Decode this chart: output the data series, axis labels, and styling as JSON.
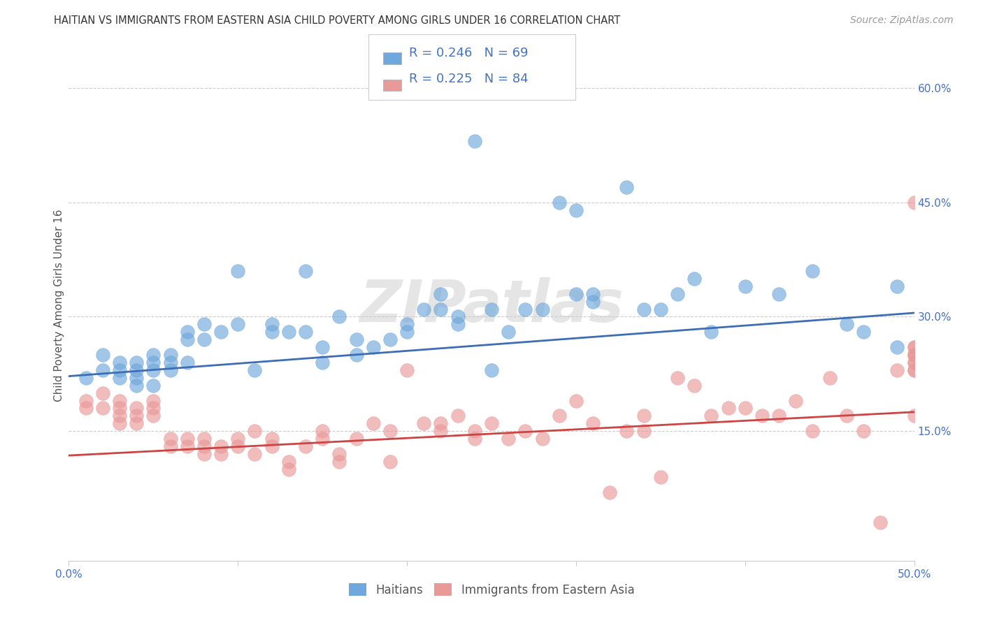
{
  "title": "HAITIAN VS IMMIGRANTS FROM EASTERN ASIA CHILD POVERTY AMONG GIRLS UNDER 16 CORRELATION CHART",
  "source": "Source: ZipAtlas.com",
  "ylabel": "Child Poverty Among Girls Under 16",
  "xlim": [
    0.0,
    0.5
  ],
  "ylim": [
    -0.02,
    0.65
  ],
  "yticks_right": [
    0.15,
    0.3,
    0.45,
    0.6
  ],
  "ytick_labels_right": [
    "15.0%",
    "30.0%",
    "45.0%",
    "60.0%"
  ],
  "blue_color": "#6fa8dc",
  "pink_color": "#ea9999",
  "blue_line_color": "#3d6eb5",
  "pink_line_color": "#cc4444",
  "legend_R1": "R = 0.246",
  "legend_N1": "N = 69",
  "legend_R2": "R = 0.225",
  "legend_N2": "N = 84",
  "watermark": "ZIPatlas",
  "blue_scatter_x": [
    0.01,
    0.02,
    0.02,
    0.03,
    0.03,
    0.03,
    0.04,
    0.04,
    0.04,
    0.04,
    0.05,
    0.05,
    0.05,
    0.05,
    0.06,
    0.06,
    0.06,
    0.07,
    0.07,
    0.07,
    0.08,
    0.08,
    0.09,
    0.1,
    0.1,
    0.11,
    0.12,
    0.12,
    0.13,
    0.14,
    0.14,
    0.15,
    0.15,
    0.16,
    0.17,
    0.17,
    0.18,
    0.19,
    0.2,
    0.2,
    0.21,
    0.22,
    0.22,
    0.23,
    0.23,
    0.24,
    0.25,
    0.25,
    0.26,
    0.27,
    0.28,
    0.29,
    0.3,
    0.3,
    0.31,
    0.31,
    0.33,
    0.34,
    0.35,
    0.36,
    0.37,
    0.38,
    0.4,
    0.42,
    0.44,
    0.46,
    0.47,
    0.49,
    0.49
  ],
  "blue_scatter_y": [
    0.22,
    0.25,
    0.23,
    0.24,
    0.23,
    0.22,
    0.24,
    0.23,
    0.22,
    0.21,
    0.25,
    0.24,
    0.23,
    0.21,
    0.25,
    0.24,
    0.23,
    0.28,
    0.27,
    0.24,
    0.29,
    0.27,
    0.28,
    0.36,
    0.29,
    0.23,
    0.28,
    0.29,
    0.28,
    0.36,
    0.28,
    0.26,
    0.24,
    0.3,
    0.27,
    0.25,
    0.26,
    0.27,
    0.29,
    0.28,
    0.31,
    0.33,
    0.31,
    0.3,
    0.29,
    0.53,
    0.31,
    0.23,
    0.28,
    0.31,
    0.31,
    0.45,
    0.44,
    0.33,
    0.33,
    0.32,
    0.47,
    0.31,
    0.31,
    0.33,
    0.35,
    0.28,
    0.34,
    0.33,
    0.36,
    0.29,
    0.28,
    0.34,
    0.26
  ],
  "pink_scatter_x": [
    0.01,
    0.01,
    0.02,
    0.02,
    0.03,
    0.03,
    0.03,
    0.03,
    0.04,
    0.04,
    0.04,
    0.05,
    0.05,
    0.05,
    0.06,
    0.06,
    0.07,
    0.07,
    0.08,
    0.08,
    0.08,
    0.09,
    0.09,
    0.1,
    0.1,
    0.11,
    0.11,
    0.12,
    0.12,
    0.13,
    0.13,
    0.14,
    0.15,
    0.15,
    0.16,
    0.16,
    0.17,
    0.18,
    0.19,
    0.19,
    0.2,
    0.21,
    0.22,
    0.22,
    0.23,
    0.24,
    0.24,
    0.25,
    0.26,
    0.27,
    0.28,
    0.29,
    0.3,
    0.31,
    0.32,
    0.33,
    0.34,
    0.34,
    0.35,
    0.36,
    0.37,
    0.38,
    0.39,
    0.4,
    0.41,
    0.42,
    0.43,
    0.44,
    0.45,
    0.46,
    0.47,
    0.48,
    0.49,
    0.5,
    0.5,
    0.5,
    0.5,
    0.5,
    0.5,
    0.5,
    0.5,
    0.5,
    0.5,
    0.5
  ],
  "pink_scatter_y": [
    0.19,
    0.18,
    0.2,
    0.18,
    0.19,
    0.18,
    0.17,
    0.16,
    0.18,
    0.17,
    0.16,
    0.19,
    0.18,
    0.17,
    0.14,
    0.13,
    0.14,
    0.13,
    0.14,
    0.13,
    0.12,
    0.13,
    0.12,
    0.14,
    0.13,
    0.15,
    0.12,
    0.14,
    0.13,
    0.11,
    0.1,
    0.13,
    0.15,
    0.14,
    0.12,
    0.11,
    0.14,
    0.16,
    0.15,
    0.11,
    0.23,
    0.16,
    0.16,
    0.15,
    0.17,
    0.15,
    0.14,
    0.16,
    0.14,
    0.15,
    0.14,
    0.17,
    0.19,
    0.16,
    0.07,
    0.15,
    0.17,
    0.15,
    0.09,
    0.22,
    0.21,
    0.17,
    0.18,
    0.18,
    0.17,
    0.17,
    0.19,
    0.15,
    0.22,
    0.17,
    0.15,
    0.03,
    0.23,
    0.26,
    0.24,
    0.25,
    0.25,
    0.23,
    0.24,
    0.23,
    0.45,
    0.17,
    0.26,
    0.25
  ],
  "blue_trend_x": [
    0.0,
    0.5
  ],
  "blue_trend_y": [
    0.222,
    0.305
  ],
  "pink_trend_x": [
    0.0,
    0.5
  ],
  "pink_trend_y": [
    0.118,
    0.175
  ]
}
